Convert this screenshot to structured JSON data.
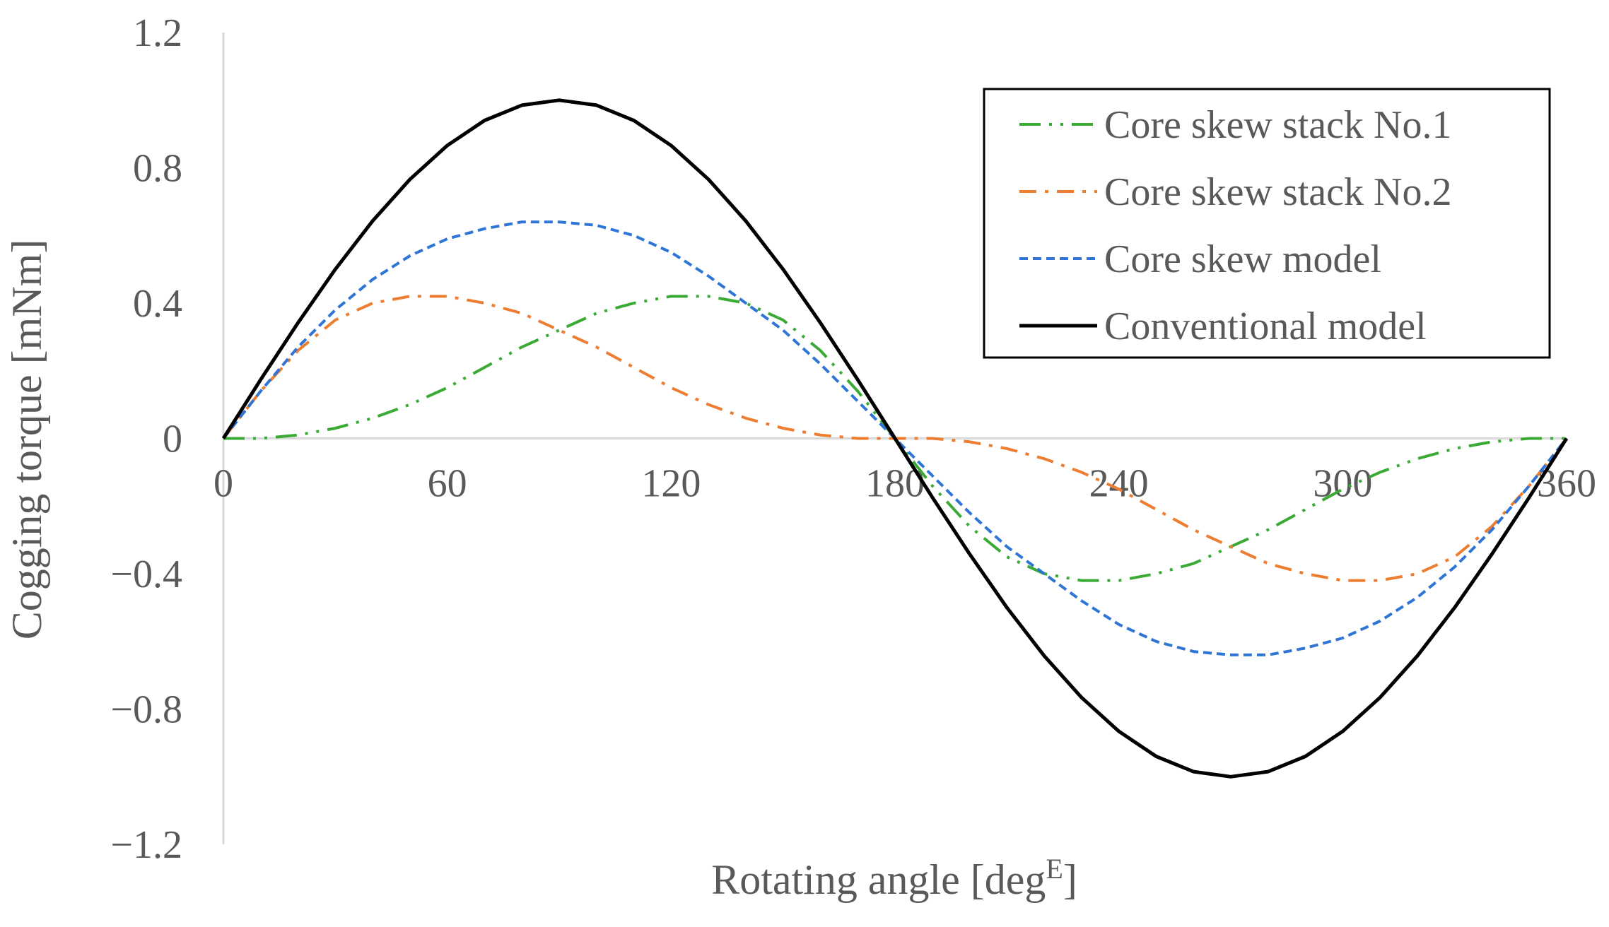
{
  "chart_data": {
    "type": "line",
    "title": "",
    "xlabel": "Rotating angle [deg",
    "xlabel_superscript": "E",
    "xlabel_suffix": "]",
    "ylabel": "Cogging torque [mNm]",
    "xlim": [
      0,
      360
    ],
    "ylim": [
      -1.2,
      1.2
    ],
    "x_ticks": [
      0,
      60,
      120,
      180,
      240,
      300,
      360
    ],
    "x_tick_labels": [
      "0",
      "60",
      "120",
      "180",
      "240",
      "300",
      "360"
    ],
    "y_ticks": [
      1.2,
      0.8,
      0.4,
      0,
      -0.4,
      -0.8,
      -1.2
    ],
    "y_tick_labels": [
      "1.2",
      "0.8",
      "0.4",
      "0",
      "−0.4",
      "−0.8",
      "−1.2"
    ],
    "grid": false,
    "legend_position": "top-right",
    "x": [
      0,
      10,
      20,
      30,
      40,
      50,
      60,
      70,
      80,
      90,
      100,
      110,
      120,
      130,
      140,
      150,
      160,
      170,
      180,
      190,
      200,
      210,
      220,
      230,
      240,
      250,
      260,
      270,
      280,
      290,
      300,
      310,
      320,
      330,
      340,
      350,
      360
    ],
    "series": [
      {
        "name": "Core skew stack No.1",
        "color": "#3aaa35",
        "dash": "long-dot-dot",
        "values": [
          0.0,
          0.0,
          0.01,
          0.03,
          0.06,
          0.1,
          0.15,
          0.21,
          0.27,
          0.32,
          0.37,
          0.4,
          0.42,
          0.42,
          0.4,
          0.35,
          0.26,
          0.14,
          0.0,
          -0.14,
          -0.26,
          -0.35,
          -0.4,
          -0.42,
          -0.42,
          -0.4,
          -0.37,
          -0.32,
          -0.27,
          -0.21,
          -0.15,
          -0.1,
          -0.06,
          -0.03,
          -0.01,
          0.0,
          0.0
        ]
      },
      {
        "name": "Core skew stack No.2",
        "color": "#ed7d31",
        "dash": "dash-dot",
        "values": [
          0.0,
          0.14,
          0.26,
          0.35,
          0.4,
          0.42,
          0.42,
          0.4,
          0.37,
          0.32,
          0.27,
          0.21,
          0.15,
          0.1,
          0.06,
          0.03,
          0.01,
          0.0,
          0.0,
          0.0,
          -0.01,
          -0.03,
          -0.06,
          -0.1,
          -0.15,
          -0.21,
          -0.27,
          -0.32,
          -0.37,
          -0.4,
          -0.42,
          -0.42,
          -0.4,
          -0.35,
          -0.26,
          -0.14,
          0.0
        ]
      },
      {
        "name": "Core skew model",
        "color": "#2e75d6",
        "dash": "short-dash",
        "values": [
          0.0,
          0.14,
          0.27,
          0.38,
          0.47,
          0.54,
          0.59,
          0.62,
          0.64,
          0.64,
          0.63,
          0.6,
          0.55,
          0.48,
          0.4,
          0.32,
          0.22,
          0.11,
          0.0,
          -0.11,
          -0.22,
          -0.32,
          -0.4,
          -0.48,
          -0.55,
          -0.6,
          -0.63,
          -0.64,
          -0.64,
          -0.62,
          -0.59,
          -0.54,
          -0.47,
          -0.38,
          -0.27,
          -0.14,
          0.0
        ]
      },
      {
        "name": "Conventional model",
        "color": "#000000",
        "dash": "solid",
        "values": [
          0.0,
          0.174,
          0.342,
          0.5,
          0.643,
          0.766,
          0.866,
          0.94,
          0.985,
          1.0,
          0.985,
          0.94,
          0.866,
          0.766,
          0.643,
          0.5,
          0.342,
          0.174,
          0.0,
          -0.174,
          -0.342,
          -0.5,
          -0.643,
          -0.766,
          -0.866,
          -0.94,
          -0.985,
          -1.0,
          -0.985,
          -0.94,
          -0.866,
          -0.766,
          -0.643,
          -0.5,
          -0.342,
          -0.174,
          0.0
        ]
      }
    ]
  }
}
